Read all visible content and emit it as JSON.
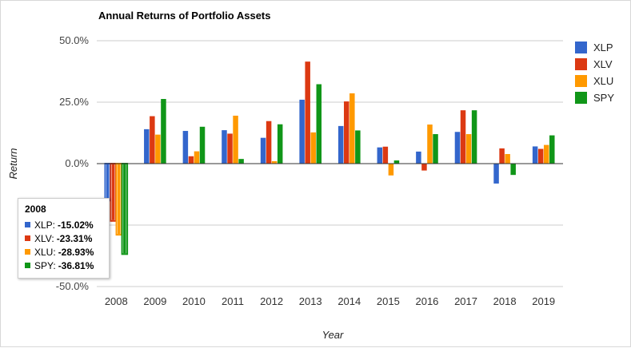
{
  "chart_data": {
    "type": "bar",
    "title": "Annual Returns of Portfolio Assets",
    "xlabel": "Year",
    "ylabel": "Return",
    "ylim": [
      -50,
      50
    ],
    "yticks": [
      "50.0%",
      "25.0%",
      "0.0%",
      "-50.0%"
    ],
    "yticks_values": [
      50,
      25,
      0,
      -50
    ],
    "categories": [
      "2008",
      "2009",
      "2010",
      "2011",
      "2012",
      "2013",
      "2014",
      "2015",
      "2016",
      "2017",
      "2018",
      "2019"
    ],
    "series": [
      {
        "name": "XLP",
        "color": "#3366cc",
        "values": [
          -15.02,
          14.0,
          13.3,
          13.6,
          10.5,
          26.0,
          15.3,
          6.6,
          4.9,
          12.9,
          -8.1,
          7.0
        ]
      },
      {
        "name": "XLV",
        "color": "#dc3912",
        "values": [
          -23.31,
          19.3,
          3.0,
          12.2,
          17.3,
          41.5,
          25.3,
          6.9,
          -2.8,
          21.7,
          6.2,
          6.0
        ]
      },
      {
        "name": "XLU",
        "color": "#ff9900",
        "values": [
          -28.93,
          11.8,
          5.0,
          19.5,
          1.0,
          12.7,
          28.6,
          -4.8,
          15.9,
          12.0,
          3.9,
          7.6
        ]
      },
      {
        "name": "SPY",
        "color": "#109618",
        "values": [
          -36.81,
          26.3,
          15.0,
          1.9,
          16.0,
          32.3,
          13.5,
          1.3,
          12.0,
          21.7,
          -4.6,
          11.5
        ]
      }
    ],
    "legend_position": "right",
    "grid": true,
    "highlight_category_index": 0
  },
  "tooltip": {
    "title": "2008",
    "rows": [
      {
        "label": "XLP:",
        "value": "-15.02%",
        "color": "#3366cc"
      },
      {
        "label": "XLV:",
        "value": "-23.31%",
        "color": "#dc3912"
      },
      {
        "label": "XLU:",
        "value": "-28.93%",
        "color": "#ff9900"
      },
      {
        "label": "SPY:",
        "value": "-36.81%",
        "color": "#109618"
      }
    ]
  }
}
